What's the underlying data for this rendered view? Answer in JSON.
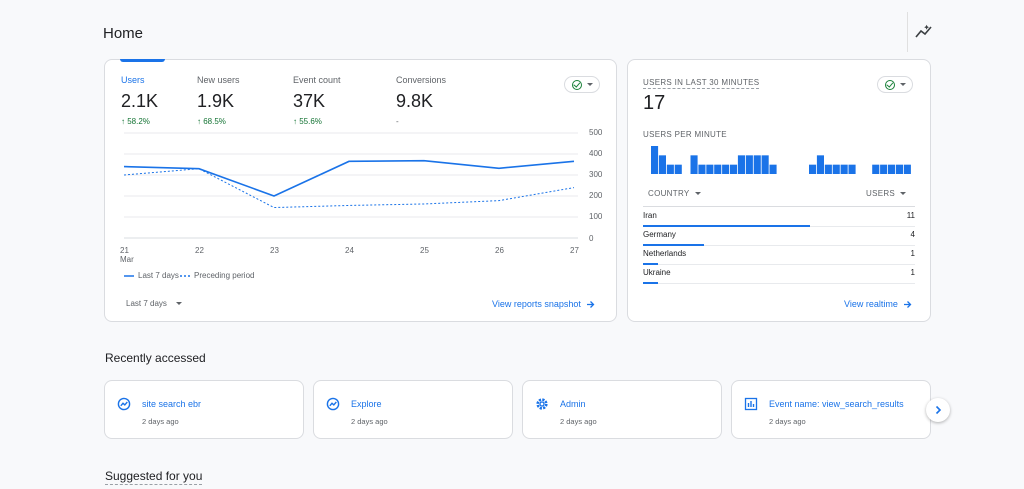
{
  "page": {
    "title": "Home"
  },
  "metrics": [
    {
      "label": "Users",
      "value": "2.1K",
      "change": "58.2%",
      "arrow": true
    },
    {
      "label": "New users",
      "value": "1.9K",
      "change": "68.5%",
      "arrow": true
    },
    {
      "label": "Event count",
      "value": "37K",
      "change": "55.6%",
      "arrow": true
    },
    {
      "label": "Conversions",
      "value": "9.8K",
      "change": "-",
      "arrow": false
    }
  ],
  "chart_data": {
    "type": "line",
    "x": [
      "21 Mar",
      "22",
      "23",
      "24",
      "25",
      "26",
      "27"
    ],
    "x_tick_labels": [
      {
        "day": "21",
        "month": "Mar"
      },
      {
        "day": "22",
        "month": ""
      },
      {
        "day": "23",
        "month": ""
      },
      {
        "day": "24",
        "month": ""
      },
      {
        "day": "25",
        "month": ""
      },
      {
        "day": "26",
        "month": ""
      },
      {
        "day": "27",
        "month": ""
      }
    ],
    "y_ticks": [
      "500",
      "400",
      "300",
      "200",
      "100",
      "0"
    ],
    "ylim": [
      0,
      500
    ],
    "series": [
      {
        "name": "Last 7 days",
        "values": [
          340,
          330,
          200,
          365,
          368,
          332,
          365
        ],
        "color": "#1a73e8",
        "style": "solid"
      },
      {
        "name": "Preceding period",
        "values": [
          300,
          330,
          145,
          155,
          162,
          178,
          240
        ],
        "color": "#1a73e8",
        "style": "dashed"
      }
    ],
    "grid": true
  },
  "main_card": {
    "date_range": "Last 7 days",
    "view_link": "View reports snapshot"
  },
  "realtime": {
    "title": "USERS IN LAST 30 MINUTES",
    "count": "17",
    "per_minute_label": "USERS PER MINUTE",
    "per_minute_values": [
      3,
      2,
      1,
      1,
      0,
      2,
      1,
      1,
      1,
      1,
      1,
      2,
      2,
      2,
      2,
      1,
      0,
      0,
      0,
      0,
      1,
      2,
      1,
      1,
      1,
      1,
      0,
      0,
      1,
      1,
      1,
      1,
      1
    ],
    "col_country": "COUNTRY",
    "col_users": "USERS",
    "countries": [
      {
        "name": "Iran",
        "users": "11",
        "fraction": 0.647
      },
      {
        "name": "Germany",
        "users": "4",
        "fraction": 0.235
      },
      {
        "name": "Netherlands",
        "users": "1",
        "fraction": 0.059
      },
      {
        "name": "Ukraine",
        "users": "1",
        "fraction": 0.059
      }
    ],
    "view_link": "View realtime"
  },
  "recent": {
    "title": "Recently accessed",
    "items": [
      {
        "name": "site search ebr",
        "time": "2 days ago",
        "icon": "explore-icon"
      },
      {
        "name": "Explore",
        "time": "2 days ago",
        "icon": "explore-icon"
      },
      {
        "name": "Admin",
        "time": "2 days ago",
        "icon": "gear-icon"
      },
      {
        "name": "Event name: view_search_results",
        "time": "2 days ago",
        "icon": "report-icon"
      }
    ]
  },
  "suggested": {
    "title": "Suggested for you"
  },
  "colors": {
    "accent": "#1a73e8",
    "positive": "#137333",
    "background": "#f8f9fb"
  }
}
